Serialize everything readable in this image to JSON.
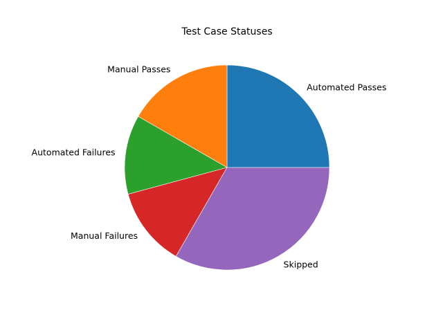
{
  "chart_data": {
    "type": "pie",
    "title": "Test Case Statuses",
    "labels": [
      "Automated Passes",
      "Manual Passes",
      "Automated Failures",
      "Manual Failures",
      "Skipped"
    ],
    "values": [
      25,
      16.7,
      12.5,
      12.5,
      33.3
    ],
    "units": "percent (estimated)",
    "colors": [
      "#1f77b4",
      "#ff7f0e",
      "#2ca02c",
      "#d62728",
      "#9467bd"
    ],
    "start_angle_deg": 0,
    "direction": "counterclockwise",
    "legend": "none",
    "edgecolor": "#ffffff"
  }
}
